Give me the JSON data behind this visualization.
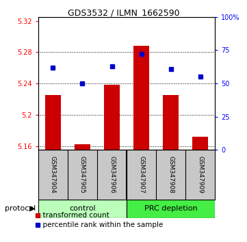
{
  "title": "GDS3532 / ILMN_1662590",
  "samples": [
    "GSM347904",
    "GSM347905",
    "GSM347906",
    "GSM347907",
    "GSM347908",
    "GSM347909"
  ],
  "red_values": [
    5.225,
    5.162,
    5.238,
    5.288,
    5.225,
    5.172
  ],
  "blue_values": [
    62,
    50,
    63,
    72,
    61,
    55
  ],
  "bar_base": 5.155,
  "ylim_left": [
    5.155,
    5.325
  ],
  "ylim_right": [
    0,
    100
  ],
  "yticks_left": [
    5.16,
    5.2,
    5.24,
    5.28,
    5.32
  ],
  "yticks_right": [
    0,
    25,
    50,
    75,
    100
  ],
  "ytick_labels_left": [
    "5.16",
    "5.2",
    "5.24",
    "5.28",
    "5.32"
  ],
  "ytick_labels_right": [
    "0",
    "25",
    "50",
    "75",
    "100%"
  ],
  "red_color": "#CC0000",
  "blue_color": "#0000CC",
  "bar_width": 0.55,
  "bg_plot": "#FFFFFF",
  "bg_sample": "#C8C8C8",
  "bg_group_control": "#BBFFBB",
  "bg_group_prc": "#44EE44",
  "legend_red": "transformed count",
  "legend_blue": "percentile rank within the sample",
  "title_fontsize": 9
}
